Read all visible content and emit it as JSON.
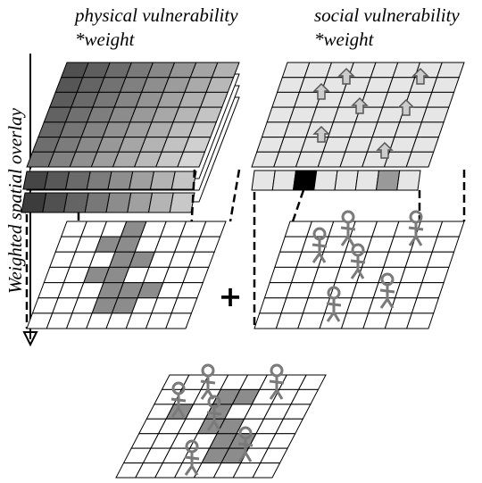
{
  "labels": {
    "physical": "physical vulnerability",
    "physical_weight": "*weight",
    "social": "social vulnerability",
    "social_weight": "*weight",
    "axis": "Weighted spatial overlay",
    "plus": "+"
  }
}
